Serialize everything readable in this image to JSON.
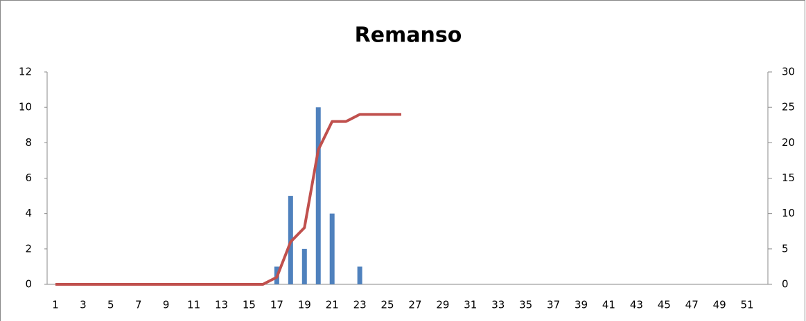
{
  "chart_data": {
    "type": "bar_line",
    "title": "Remanso",
    "categories": [
      1,
      null,
      3,
      null,
      5,
      null,
      7,
      null,
      9,
      null,
      11,
      null,
      13,
      null,
      15,
      null,
      17,
      null,
      19,
      null,
      21,
      null,
      23,
      null,
      25,
      null,
      27,
      null,
      29,
      null,
      31,
      null,
      33,
      null,
      35,
      null,
      37,
      null,
      39,
      null,
      41,
      null,
      43,
      null,
      45,
      null,
      47,
      null,
      49,
      null,
      51,
      null
    ],
    "series": [
      {
        "type": "bar",
        "color": "#4f81bd",
        "values": [
          0,
          0,
          0,
          0,
          0,
          0,
          0,
          0,
          0,
          0,
          0,
          0,
          0,
          0,
          0,
          0,
          1,
          5,
          2,
          10,
          4,
          0,
          1,
          0,
          0,
          0,
          0,
          0,
          0,
          0,
          0,
          0,
          0,
          0,
          0,
          0,
          0,
          0,
          0,
          0,
          0,
          0,
          0,
          0,
          0,
          0,
          0,
          0,
          0,
          0,
          0,
          0
        ]
      },
      {
        "type": "line",
        "axis": "y2",
        "color": "#c0504d",
        "values": [
          0,
          0,
          0,
          0,
          0,
          0,
          0,
          0,
          0,
          0,
          0,
          0,
          0,
          0,
          0,
          0,
          1,
          6,
          8,
          19,
          23,
          23,
          24,
          24,
          24,
          24,
          null,
          null,
          null,
          null,
          null,
          null,
          null,
          null,
          null,
          null,
          null,
          null,
          null,
          null,
          null,
          null,
          null,
          null,
          null,
          null,
          null,
          null,
          null,
          null,
          null,
          null
        ]
      }
    ],
    "ylim": [
      0,
      12
    ],
    "yticks": [
      0,
      2,
      4,
      6,
      8,
      10,
      12
    ],
    "y2lim": [
      0,
      30
    ],
    "y2ticks": [
      0,
      5,
      10,
      15,
      20,
      25,
      30
    ]
  }
}
